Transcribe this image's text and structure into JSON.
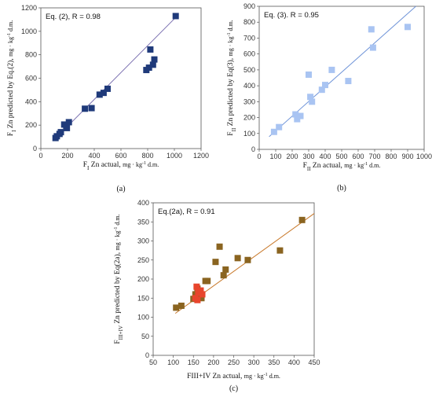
{
  "chart_data": [
    {
      "type": "scatter",
      "panel_label": "(a)",
      "annotation": "Eq. (2), R = 0.98",
      "xlabel": "FI Zn actual, mg·kg-1 d.m.",
      "ylabel": "FI Zn predicted by Eq.(2), mg·kg-1 d.m.",
      "xlabel_parts": {
        "main": "F",
        "sub": "I",
        "rest": " Zn actual, ",
        "unit": "mg · kg",
        "sup": "-1",
        "tail": " d.m."
      },
      "ylabel_parts": {
        "main": "F",
        "sub": "I",
        "rest": " Zn predicted by Eq.(2),  ",
        "unit": "mg · kg",
        "sup": "-1",
        "tail": " d.m."
      },
      "xlim": [
        0,
        1200
      ],
      "ylim": [
        0,
        1200
      ],
      "xticks": [
        "0",
        "200",
        "400",
        "600",
        "800",
        "1000",
        "1200"
      ],
      "yticks": [
        "0",
        "200",
        "400",
        "600",
        "800",
        "1000",
        "1200"
      ],
      "marker_color": "#1f3a7a",
      "line_color": "#7a6fb0",
      "trendline": [
        [
          100,
          75
        ],
        [
          1020,
          1130
        ]
      ],
      "points": [
        [
          110,
          90
        ],
        [
          120,
          105
        ],
        [
          140,
          125
        ],
        [
          150,
          140
        ],
        [
          175,
          205
        ],
        [
          190,
          195
        ],
        [
          195,
          175
        ],
        [
          210,
          225
        ],
        [
          330,
          340
        ],
        [
          380,
          345
        ],
        [
          440,
          460
        ],
        [
          470,
          475
        ],
        [
          500,
          510
        ],
        [
          790,
          670
        ],
        [
          810,
          690
        ],
        [
          820,
          845
        ],
        [
          840,
          715
        ],
        [
          850,
          760
        ],
        [
          1010,
          1130
        ]
      ]
    },
    {
      "type": "scatter",
      "panel_label": "(b)",
      "annotation": "Eq. (3). R = 0.95",
      "xlabel": "FII Zn actual, mg·kg-1 d.m.",
      "ylabel": "FII Zn predicted by Eq(3), mg·kg-1 d.m.",
      "xlabel_parts": {
        "main": "F",
        "sub": "II",
        "rest": " Zn actual, ",
        "unit": "mg · kg",
        "sup": "-1",
        "tail": " d.m."
      },
      "ylabel_parts": {
        "main": "F",
        "sub": "II",
        "rest": " Zn predicted by Eq(3),  ",
        "unit": "mg · kg",
        "sup": "-1",
        "tail": " d.m."
      },
      "xlim": [
        0,
        1000
      ],
      "ylim": [
        0,
        900
      ],
      "xticks": [
        "0",
        "100",
        "200",
        "300",
        "400",
        "500",
        "600",
        "700",
        "800",
        "900",
        "1000"
      ],
      "yticks": [
        "0",
        "100",
        "200",
        "300",
        "400",
        "500",
        "600",
        "700",
        "800",
        "900"
      ],
      "marker_color": "#a9c4f2",
      "line_color": "#6f94d8",
      "trendline": [
        [
          60,
          80
        ],
        [
          950,
          900
        ]
      ],
      "points": [
        [
          90,
          110
        ],
        [
          120,
          140
        ],
        [
          220,
          220
        ],
        [
          230,
          190
        ],
        [
          250,
          210
        ],
        [
          300,
          470
        ],
        [
          310,
          330
        ],
        [
          320,
          300
        ],
        [
          380,
          375
        ],
        [
          400,
          405
        ],
        [
          440,
          500
        ],
        [
          540,
          430
        ],
        [
          680,
          755
        ],
        [
          690,
          640
        ],
        [
          900,
          770
        ]
      ]
    },
    {
      "type": "scatter",
      "panel_label": "(c)",
      "annotation": "Eq.(2a), R = 0.91",
      "xlabel": "FIII+IV Zn actual, mg·kg-1 d.m.",
      "ylabel": "FIII+IV Zn predicted by Eq(2a), mg·kg-1 d.m.",
      "xlabel_parts": {
        "main": "FIII+IV",
        "sub": "",
        "rest": " Zn actual, ",
        "unit": "mg · kg",
        "sup": "-1",
        "tail": " d.m."
      },
      "ylabel_parts": {
        "main": "F",
        "sub": "III+IV",
        "rest": " Zn predicted by Eq(2a),  ",
        "unit": "mg · kg",
        "sup": "-1",
        "tail": " d.m."
      },
      "xlim": [
        50,
        450
      ],
      "ylim": [
        0,
        400
      ],
      "xticks": [
        "50",
        "100",
        "150",
        "200",
        "250",
        "300",
        "350",
        "400",
        "450"
      ],
      "yticks": [
        "0",
        "50",
        "100",
        "150",
        "200",
        "250",
        "300",
        "350",
        "400"
      ],
      "marker_color": "#8a6420",
      "highlight_color": "#e8452c",
      "line_color": "#c8782a",
      "trendline": [
        [
          105,
          110
        ],
        [
          450,
          372
        ]
      ],
      "points": [
        {
          "x": 107,
          "y": 125
        },
        {
          "x": 120,
          "y": 130
        },
        {
          "x": 150,
          "y": 148
        },
        {
          "x": 155,
          "y": 160
        },
        {
          "x": 160,
          "y": 175
        },
        {
          "x": 165,
          "y": 155
        },
        {
          "x": 170,
          "y": 150
        },
        {
          "x": 180,
          "y": 195
        },
        {
          "x": 185,
          "y": 195
        },
        {
          "x": 205,
          "y": 245
        },
        {
          "x": 215,
          "y": 285
        },
        {
          "x": 225,
          "y": 210
        },
        {
          "x": 230,
          "y": 225
        },
        {
          "x": 260,
          "y": 255
        },
        {
          "x": 285,
          "y": 250
        },
        {
          "x": 365,
          "y": 275
        },
        {
          "x": 420,
          "y": 355
        },
        {
          "x": 155,
          "y": 150,
          "hl": true
        },
        {
          "x": 158,
          "y": 180,
          "hl": true
        },
        {
          "x": 162,
          "y": 165,
          "hl": true
        },
        {
          "x": 168,
          "y": 170,
          "hl": true
        },
        {
          "x": 172,
          "y": 160,
          "hl": true
        },
        {
          "x": 160,
          "y": 145,
          "hl": true
        }
      ]
    }
  ]
}
